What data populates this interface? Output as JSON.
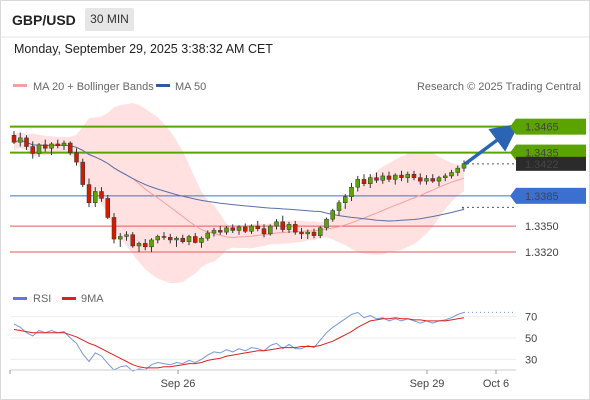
{
  "header": {
    "symbol": "GBP/USD",
    "timeframe": "30 MIN",
    "datetime": "Monday, September 29, 2025 3:38:32 AM CET"
  },
  "colors": {
    "resistance": "#5ba300",
    "current": "#2b2b2b",
    "pivot": "#3c70d0",
    "support": "#e15a5a",
    "bull_candle": "#5ba300",
    "bear_candle": "#d01c00",
    "bollinger": "#ffc9c9",
    "ma20": "#f2a0a0",
    "ma50": "#5a6fa6",
    "arrow": "#2c64b4",
    "rsi": "#7799e0",
    "rsi_ma": "#e02020"
  },
  "chart_data": [
    {
      "type": "candlestick",
      "title": "",
      "legend": [
        {
          "name": "MA 20 + Bollinger Bands",
          "color": "#f2a0a0"
        },
        {
          "name": "MA 50",
          "color": "#2f5aa0"
        }
      ],
      "credit": "Research © 2025 Trading Central",
      "x_ticks": [
        "Sep 26",
        "Sep 29",
        "Oct 6"
      ],
      "y_range": [
        1.3305,
        1.3475
      ],
      "levels": [
        {
          "label": "1.3465",
          "value": 1.3465,
          "kind": "resistance"
        },
        {
          "label": "1.3435",
          "value": 1.3435,
          "kind": "resistance"
        },
        {
          "label": "1.3422",
          "value": 1.3422,
          "kind": "current"
        },
        {
          "label": "1.3385",
          "value": 1.3385,
          "kind": "pivot"
        },
        {
          "label": "1.3350",
          "value": 1.335,
          "kind": "support"
        },
        {
          "label": "1.3320",
          "value": 1.332,
          "kind": "support"
        }
      ],
      "candles": [
        [
          1.3455,
          1.346,
          1.3445,
          1.3447
        ],
        [
          1.3447,
          1.3458,
          1.3442,
          1.3452
        ],
        [
          1.3452,
          1.3455,
          1.3438,
          1.3442
        ],
        [
          1.3442,
          1.3448,
          1.3428,
          1.3434
        ],
        [
          1.3434,
          1.3446,
          1.343,
          1.3444
        ],
        [
          1.3444,
          1.345,
          1.3436,
          1.344
        ],
        [
          1.344,
          1.3447,
          1.3432,
          1.3445
        ],
        [
          1.3445,
          1.345,
          1.344,
          1.3443
        ],
        [
          1.3443,
          1.3449,
          1.3438,
          1.3446
        ],
        [
          1.3446,
          1.3448,
          1.3432,
          1.3435
        ],
        [
          1.3435,
          1.344,
          1.342,
          1.3424
        ],
        [
          1.3424,
          1.3428,
          1.3395,
          1.3398
        ],
        [
          1.3398,
          1.3405,
          1.3372,
          1.3377
        ],
        [
          1.3377,
          1.3395,
          1.3372,
          1.339
        ],
        [
          1.339,
          1.3395,
          1.3378,
          1.3382
        ],
        [
          1.3382,
          1.3386,
          1.3358,
          1.336
        ],
        [
          1.336,
          1.3365,
          1.333,
          1.3335
        ],
        [
          1.3335,
          1.3342,
          1.3326,
          1.3338
        ],
        [
          1.3338,
          1.3344,
          1.3333,
          1.334
        ],
        [
          1.334,
          1.3343,
          1.3325,
          1.3327
        ],
        [
          1.3327,
          1.3332,
          1.332,
          1.333
        ],
        [
          1.333,
          1.3335,
          1.3322,
          1.3326
        ],
        [
          1.3326,
          1.3336,
          1.332,
          1.3334
        ],
        [
          1.3334,
          1.334,
          1.333,
          1.3338
        ],
        [
          1.3338,
          1.3343,
          1.3334,
          1.3337
        ],
        [
          1.3337,
          1.3341,
          1.333,
          1.3334
        ],
        [
          1.3334,
          1.3338,
          1.3326,
          1.3336
        ],
        [
          1.3336,
          1.334,
          1.333,
          1.3332
        ],
        [
          1.3332,
          1.334,
          1.3328,
          1.3338
        ],
        [
          1.3338,
          1.3342,
          1.333,
          1.3331
        ],
        [
          1.3331,
          1.3338,
          1.3325,
          1.3336
        ],
        [
          1.3336,
          1.3345,
          1.3333,
          1.3342
        ],
        [
          1.3342,
          1.3348,
          1.3338,
          1.3345
        ],
        [
          1.3345,
          1.335,
          1.334,
          1.3343
        ],
        [
          1.3343,
          1.335,
          1.334,
          1.3348
        ],
        [
          1.3348,
          1.3352,
          1.3342,
          1.3345
        ],
        [
          1.3345,
          1.3351,
          1.334,
          1.3349
        ],
        [
          1.3349,
          1.3353,
          1.3342,
          1.3344
        ],
        [
          1.3344,
          1.3352,
          1.3341,
          1.335
        ],
        [
          1.335,
          1.3356,
          1.3344,
          1.3347
        ],
        [
          1.3347,
          1.3352,
          1.3337,
          1.3341
        ],
        [
          1.3341,
          1.3352,
          1.3339,
          1.335
        ],
        [
          1.335,
          1.3358,
          1.3346,
          1.3355
        ],
        [
          1.3355,
          1.3362,
          1.3343,
          1.3346
        ],
        [
          1.3346,
          1.3355,
          1.3342,
          1.3352
        ],
        [
          1.3352,
          1.3356,
          1.334,
          1.3343
        ],
        [
          1.3343,
          1.3348,
          1.3335,
          1.3341
        ],
        [
          1.3341,
          1.3346,
          1.3335,
          1.3343
        ],
        [
          1.3343,
          1.3347,
          1.3336,
          1.3339
        ],
        [
          1.3339,
          1.335,
          1.3336,
          1.3348
        ],
        [
          1.3348,
          1.336,
          1.3345,
          1.3358
        ],
        [
          1.3358,
          1.337,
          1.3355,
          1.3368
        ],
        [
          1.3368,
          1.338,
          1.3362,
          1.3377
        ],
        [
          1.3377,
          1.3387,
          1.337,
          1.3384
        ],
        [
          1.3384,
          1.34,
          1.3379,
          1.3395
        ],
        [
          1.3395,
          1.3408,
          1.339,
          1.3404
        ],
        [
          1.3404,
          1.341,
          1.3396,
          1.3399
        ],
        [
          1.3399,
          1.341,
          1.3394,
          1.3406
        ],
        [
          1.3406,
          1.3412,
          1.34,
          1.3403
        ],
        [
          1.3403,
          1.3412,
          1.3399,
          1.3408
        ],
        [
          1.3408,
          1.3413,
          1.3401,
          1.3404
        ],
        [
          1.3404,
          1.3411,
          1.3398,
          1.3409
        ],
        [
          1.3409,
          1.3414,
          1.3402,
          1.3406
        ],
        [
          1.3406,
          1.3413,
          1.34,
          1.341
        ],
        [
          1.341,
          1.3414,
          1.3403,
          1.3406
        ],
        [
          1.3406,
          1.3411,
          1.3398,
          1.3402
        ],
        [
          1.3402,
          1.3409,
          1.3398,
          1.3405
        ],
        [
          1.3405,
          1.341,
          1.34,
          1.3402
        ],
        [
          1.3402,
          1.3408,
          1.3396,
          1.3406
        ],
        [
          1.3406,
          1.3411,
          1.3402,
          1.3408
        ],
        [
          1.3408,
          1.3415,
          1.3405,
          1.3412
        ],
        [
          1.3412,
          1.342,
          1.3408,
          1.3417
        ],
        [
          1.3417,
          1.3426,
          1.3413,
          1.3422
        ]
      ]
    },
    {
      "type": "line",
      "title": "",
      "legend": [
        {
          "name": "RSI",
          "color": "#5a78e0"
        },
        {
          "name": "9MA",
          "color": "#e02020"
        }
      ],
      "y_ticks": [
        70,
        50,
        30
      ],
      "y_range": [
        20,
        80
      ],
      "series": [
        {
          "name": "RSI",
          "values": [
            63,
            60,
            55,
            52,
            57,
            55,
            57,
            55,
            56,
            50,
            45,
            35,
            28,
            36,
            33,
            26,
            20,
            23,
            24,
            19,
            21,
            20,
            25,
            27,
            26,
            25,
            27,
            26,
            29,
            27,
            30,
            34,
            37,
            36,
            39,
            37,
            40,
            38,
            41,
            40,
            38,
            43,
            45,
            40,
            44,
            40,
            40,
            43,
            41,
            48,
            55,
            60,
            64,
            68,
            72,
            74,
            69,
            71,
            68,
            69,
            66,
            68,
            66,
            68,
            66,
            64,
            66,
            64,
            66,
            67,
            69,
            72,
            74
          ]
        },
        {
          "name": "9MA",
          "values": [
            58,
            57,
            56,
            55,
            55,
            55,
            55,
            55,
            55,
            53,
            51,
            48,
            45,
            43,
            40,
            37,
            34,
            31,
            28,
            25,
            23,
            22,
            22,
            22,
            23,
            23,
            24,
            25,
            26,
            26,
            27,
            29,
            30,
            31,
            33,
            34,
            35,
            36,
            37,
            38,
            38,
            39,
            40,
            41,
            41,
            41,
            42,
            42,
            42,
            43,
            45,
            47,
            50,
            53,
            56,
            60,
            63,
            66,
            67,
            68,
            68,
            69,
            68,
            68,
            67,
            67,
            66,
            66,
            66,
            66,
            67,
            68,
            69
          ]
        }
      ]
    }
  ]
}
